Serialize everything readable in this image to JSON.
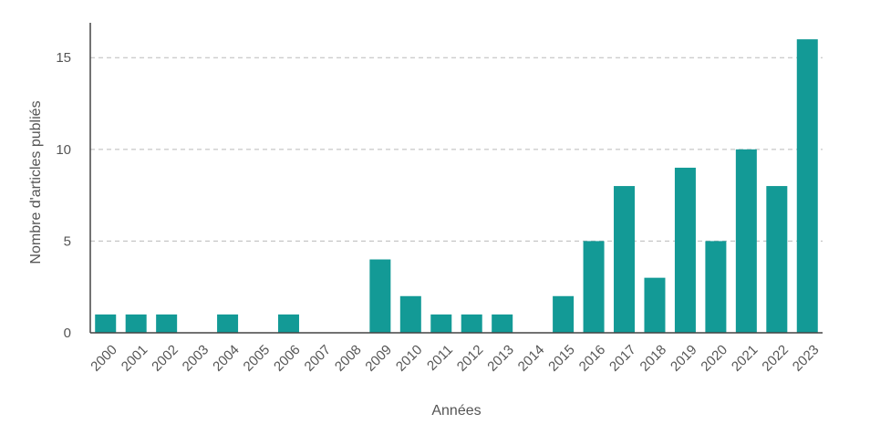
{
  "chart_data": {
    "type": "bar",
    "xlabel": "Années",
    "ylabel": "Nombre d'articles publiés",
    "categories": [
      "2000",
      "2001",
      "2002",
      "2003",
      "2004",
      "2005",
      "2006",
      "2007",
      "2008",
      "2009",
      "2010",
      "2011",
      "2012",
      "2013",
      "2014",
      "2015",
      "2016",
      "2017",
      "2018",
      "2019",
      "2020",
      "2021",
      "2022",
      "2023"
    ],
    "values": [
      1,
      1,
      1,
      0,
      1,
      0,
      1,
      0,
      0,
      4,
      2,
      1,
      1,
      1,
      0,
      2,
      5,
      8,
      3,
      9,
      5,
      10,
      8,
      16
    ],
    "ylim": [
      0,
      16.9
    ],
    "yticks": [
      0,
      5,
      10,
      15
    ],
    "grid": "horizontal-dashed",
    "legend": "none",
    "bar_color": "#139a96",
    "grid_color": "#bbbbbb",
    "axis_color": "#444444",
    "text_color": "#555555"
  }
}
